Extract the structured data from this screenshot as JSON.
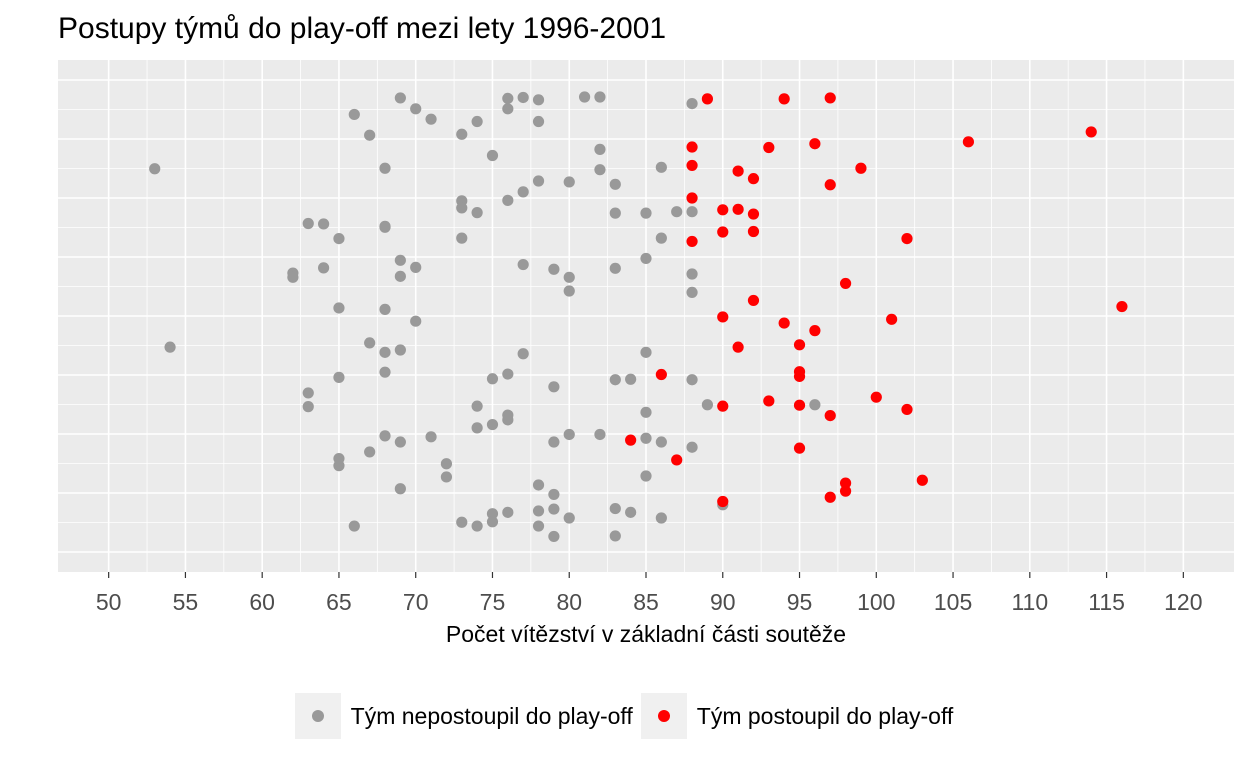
{
  "title": "Postupy týmů do play-off mezi lety 1996-2001",
  "chart_data": {
    "type": "scatter",
    "title": "Postupy týmů do play-off mezi lety 1996-2001",
    "xlabel": "Počet vítězství v základní části soutěže",
    "ylabel": "",
    "xlim": [
      46.7,
      123.3
    ],
    "ylim": [
      0,
      1
    ],
    "xticks": [
      50,
      55,
      60,
      65,
      70,
      75,
      80,
      85,
      90,
      95,
      100,
      105,
      110,
      115,
      120
    ],
    "y_axis_labels": "none (random vertical jitter)",
    "grid": true,
    "legend_position": "bottom",
    "series": [
      {
        "name": "Tým nepostoupil do play-off",
        "color": "#999999",
        "x": [
          69,
          82,
          81,
          77,
          76,
          78,
          88,
          70,
          76,
          66,
          71,
          78,
          74,
          73,
          67,
          82,
          75,
          86,
          53,
          68,
          82,
          83,
          80,
          78,
          77,
          76,
          73,
          73,
          74,
          83,
          85,
          87,
          88,
          63,
          64,
          65,
          68,
          68,
          86,
          73,
          69,
          85,
          70,
          64,
          62,
          62,
          69,
          77,
          79,
          80,
          80,
          88,
          88,
          83,
          65,
          68,
          70,
          67,
          54,
          68,
          69,
          77,
          85,
          76,
          68,
          65,
          83,
          84,
          75,
          79,
          88,
          89,
          96,
          85,
          63,
          63,
          74,
          76,
          76,
          74,
          75,
          80,
          82,
          79,
          85,
          68,
          69,
          71,
          67,
          86,
          72,
          72,
          65,
          65,
          88,
          85,
          78,
          79,
          69,
          79,
          83,
          76,
          84,
          75,
          78,
          80,
          86,
          73,
          74,
          75,
          66,
          78,
          79,
          83,
          90
        ],
        "y": [
          0.962,
          0.964,
          0.964,
          0.963,
          0.961,
          0.958,
          0.95,
          0.939,
          0.939,
          0.927,
          0.917,
          0.912,
          0.912,
          0.885,
          0.883,
          0.853,
          0.84,
          0.815,
          0.812,
          0.813,
          0.81,
          0.779,
          0.784,
          0.786,
          0.763,
          0.745,
          0.744,
          0.729,
          0.719,
          0.718,
          0.718,
          0.721,
          0.721,
          0.696,
          0.695,
          0.664,
          0.688,
          0.69,
          0.665,
          0.665,
          0.618,
          0.622,
          0.603,
          0.602,
          0.591,
          0.582,
          0.584,
          0.609,
          0.599,
          0.582,
          0.553,
          0.589,
          0.55,
          0.601,
          0.517,
          0.514,
          0.489,
          0.443,
          0.434,
          0.423,
          0.428,
          0.42,
          0.423,
          0.377,
          0.381,
          0.37,
          0.365,
          0.366,
          0.367,
          0.35,
          0.365,
          0.312,
          0.312,
          0.296,
          0.337,
          0.308,
          0.309,
          0.29,
          0.28,
          0.263,
          0.27,
          0.249,
          0.249,
          0.233,
          0.241,
          0.246,
          0.233,
          0.244,
          0.212,
          0.233,
          0.187,
          0.159,
          0.198,
          0.183,
          0.222,
          0.161,
          0.142,
          0.122,
          0.134,
          0.091,
          0.092,
          0.084,
          0.084,
          0.081,
          0.087,
          0.072,
          0.072,
          0.063,
          0.055,
          0.064,
          0.055,
          0.055,
          0.033,
          0.034,
          0.1
        ]
      },
      {
        "name": "Tým postoupil do play-off",
        "color": "#ff0000",
        "x": [
          89,
          94,
          97,
          114,
          106,
          88,
          93,
          96,
          99,
          88,
          91,
          92,
          97,
          88,
          90,
          91,
          92,
          90,
          92,
          102,
          88,
          98,
          92,
          116,
          90,
          101,
          94,
          96,
          91,
          95,
          86,
          95,
          95,
          93,
          100,
          90,
          95,
          102,
          97,
          84,
          95,
          87,
          103,
          98,
          98,
          97,
          90
        ],
        "y": [
          0.96,
          0.96,
          0.962,
          0.89,
          0.869,
          0.858,
          0.857,
          0.865,
          0.813,
          0.819,
          0.807,
          0.791,
          0.778,
          0.75,
          0.725,
          0.726,
          0.716,
          0.678,
          0.679,
          0.664,
          0.658,
          0.569,
          0.533,
          0.52,
          0.498,
          0.493,
          0.485,
          0.469,
          0.434,
          0.439,
          0.376,
          0.382,
          0.372,
          0.32,
          0.328,
          0.309,
          0.311,
          0.302,
          0.289,
          0.237,
          0.22,
          0.195,
          0.152,
          0.146,
          0.129,
          0.116,
          0.107
        ]
      }
    ]
  },
  "legend": {
    "items": [
      {
        "label": "Tým nepostoupil do play-off",
        "color": "#999999"
      },
      {
        "label": "Tým postoupil do play-off",
        "color": "#ff0000"
      }
    ]
  }
}
